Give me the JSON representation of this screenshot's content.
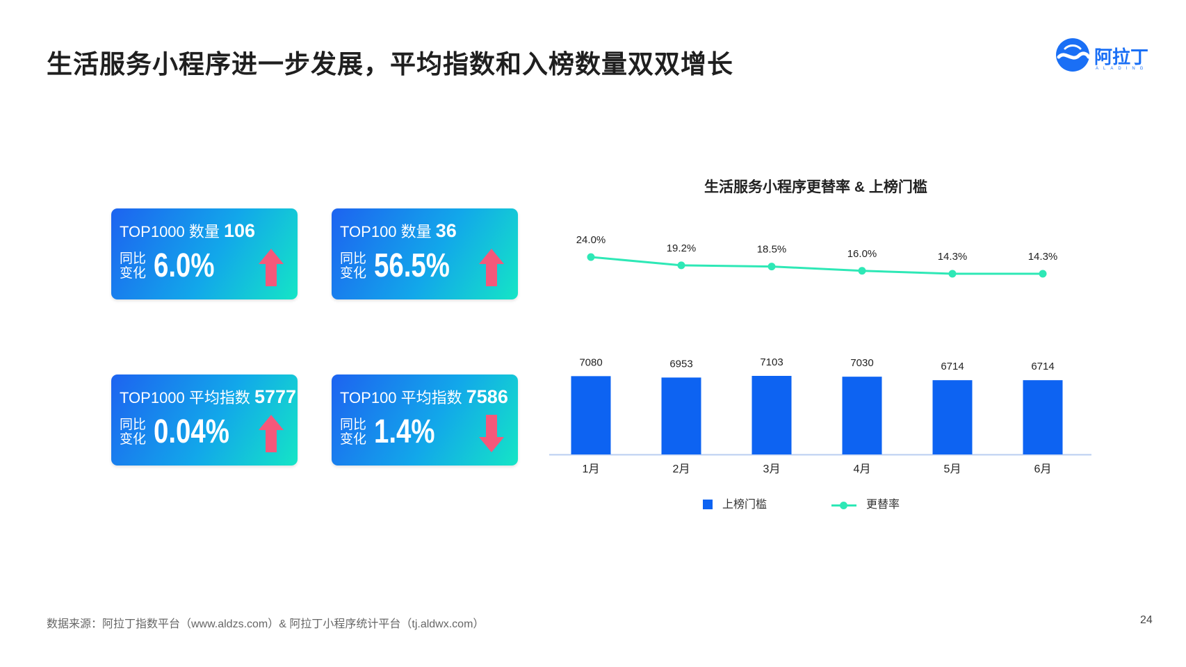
{
  "page": {
    "title": "生活服务小程序进一步发展，平均指数和入榜数量双双增长",
    "source": "数据来源：阿拉丁指数平台（www.aldzs.com）& 阿拉丁小程序统计平台（tj.aldwx.com）",
    "page_number": "24"
  },
  "logo": {
    "name": "阿拉丁",
    "sub": "ALADING"
  },
  "cards": [
    {
      "head": "TOP1000 数量 ",
      "value": "106",
      "label": "同比变化",
      "pct": "6.0%",
      "direction": "up"
    },
    {
      "head": "TOP100 数量 ",
      "value": "36",
      "label": "同比变化",
      "pct": "56.5%",
      "direction": "up"
    },
    {
      "head": "TOP1000 平均指数 ",
      "value": "5777",
      "label": "同比变化",
      "pct": "0.04%",
      "direction": "up"
    },
    {
      "head": "TOP100 平均指数 ",
      "value": "7586",
      "label": "同比变化",
      "pct": "1.4%",
      "direction": "down"
    }
  ],
  "colors": {
    "bar": "#0d63f2",
    "line": "#2ee8b6",
    "up_arrow": "#f4587a",
    "down_arrow": "#f4587a",
    "card_start": "#1d63f0",
    "card_end": "#15e5c6"
  },
  "chart_data": {
    "type": "bar+line",
    "title": "生活服务小程序更替率 & 上榜门槛",
    "categories": [
      "1月",
      "2月",
      "3月",
      "4月",
      "5月",
      "6月"
    ],
    "series": [
      {
        "name": "上榜门槛",
        "type": "bar",
        "values": [
          7080,
          6953,
          7103,
          7030,
          6714,
          6714
        ],
        "labels": [
          "7080",
          "6953",
          "7103",
          "7030",
          "6714",
          "6714"
        ]
      },
      {
        "name": "更替率",
        "type": "line",
        "values": [
          24.0,
          19.2,
          18.5,
          16.0,
          14.3,
          14.3
        ],
        "labels": [
          "24.0%",
          "19.2%",
          "18.5%",
          "16.0%",
          "14.3%",
          "14.3%"
        ]
      }
    ],
    "legend": [
      "上榜门槛",
      "更替率"
    ],
    "legend_position": "bottom",
    "grid": false
  }
}
